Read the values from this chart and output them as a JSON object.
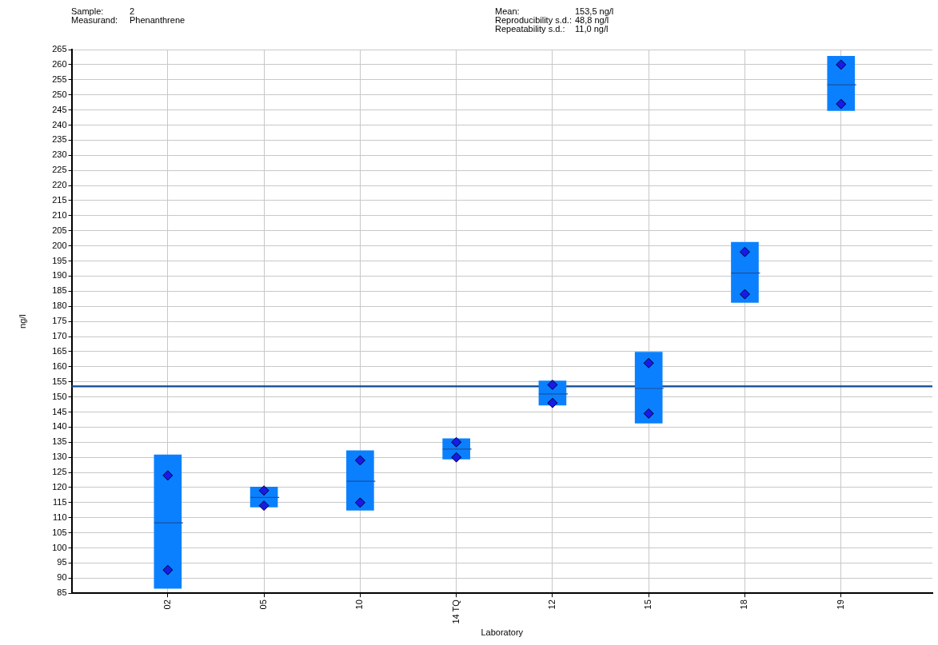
{
  "chart_data": {
    "type": "box",
    "xlabel": "Laboratory",
    "ylabel": "ng/l",
    "annotations": [
      "Sample:\t2",
      "Measurand:\tPhenanthrene",
      "Mean:\t153,5 ng/l",
      "Reproducibility s.d.:\t48,8 ng/l",
      "Repeatability s.d.:\t11,0 ng/l"
    ],
    "categories": [
      "02",
      "05",
      "10",
      "14 TQ",
      "12",
      "15",
      "18",
      "19"
    ],
    "series": [
      {
        "type": "box",
        "color": "#0a80ff",
        "boxes": [
          {
            "low": 86.6,
            "q1": 86.6,
            "median": 108.3,
            "q3": 130.8,
            "high": 130.8
          },
          {
            "low": 113.5,
            "q1": 113.5,
            "median": 116.7,
            "q3": 120.2,
            "high": 120.2
          },
          {
            "low": 112.5,
            "q1": 112.5,
            "median": 122.1,
            "q3": 132.2,
            "high": 132.2
          },
          {
            "low": 129.4,
            "q1": 129.4,
            "median": 132.7,
            "q3": 136.2,
            "high": 136.2
          },
          {
            "low": 147.3,
            "q1": 147.3,
            "median": 151.0,
            "q3": 155.3,
            "high": 155.3
          },
          {
            "low": 141.3,
            "q1": 141.3,
            "median": 152.8,
            "q3": 164.8,
            "high": 164.8
          },
          {
            "low": 181.3,
            "q1": 181.3,
            "median": 191.0,
            "q3": 201.2,
            "high": 201.2
          },
          {
            "low": 244.8,
            "q1": 244.8,
            "median": 253.3,
            "q3": 262.8,
            "high": 262.8
          }
        ]
      },
      {
        "type": "scatter",
        "color": "#1a1ae6",
        "x": [
          "02",
          "02",
          "05",
          "05",
          "10",
          "10",
          "14 TQ",
          "14 TQ",
          "12",
          "12",
          "15",
          "15",
          "18",
          "18",
          "19",
          "19"
        ],
        "values": [
          124,
          92.7,
          119,
          114,
          129,
          115,
          135,
          130,
          154,
          148,
          161.2,
          144.5,
          198,
          184,
          260,
          247
        ]
      }
    ],
    "ylim": [
      85,
      265
    ],
    "yticks": [
      85,
      90,
      95,
      100,
      105,
      110,
      115,
      120,
      125,
      130,
      135,
      140,
      145,
      150,
      155,
      160,
      165,
      170,
      175,
      180,
      185,
      190,
      195,
      200,
      205,
      210,
      215,
      220,
      225,
      230,
      235,
      240,
      245,
      250,
      255,
      260,
      265
    ],
    "ref_lines": [
      {
        "axis": "y",
        "value": 153.5,
        "color": "#0b4a8f"
      }
    ],
    "grid": true,
    "legend": false,
    "marker": "diamond"
  }
}
